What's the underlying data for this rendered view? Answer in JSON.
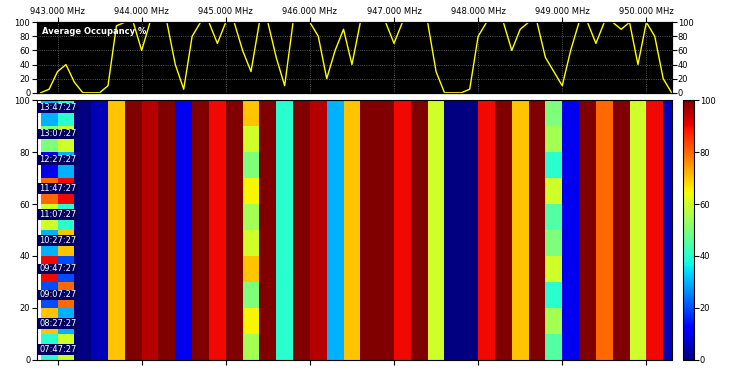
{
  "chart_data": [
    {
      "type": "line",
      "title": "Average Occupancy %",
      "color": "#ffff00",
      "grid": true,
      "x": [
        942.8,
        942.9,
        943.0,
        943.1,
        943.2,
        943.3,
        943.4,
        943.5,
        943.6,
        943.7,
        943.8,
        943.9,
        944.0,
        944.1,
        944.2,
        944.3,
        944.4,
        944.5,
        944.6,
        944.7,
        944.8,
        944.9,
        945.0,
        945.1,
        945.2,
        945.3,
        945.4,
        945.5,
        945.6,
        945.7,
        945.8,
        945.9,
        946.0,
        946.1,
        946.2,
        946.3,
        946.4,
        946.5,
        946.6,
        946.7,
        946.8,
        946.9,
        947.0,
        947.1,
        947.2,
        947.3,
        947.4,
        947.5,
        947.6,
        947.7,
        947.8,
        947.9,
        948.0,
        948.1,
        948.2,
        948.3,
        948.4,
        948.5,
        948.6,
        948.7,
        948.8,
        948.9,
        949.0,
        949.1,
        949.2,
        949.3,
        949.4,
        949.5,
        949.6,
        949.7,
        949.8,
        949.9,
        950.0,
        950.1,
        950.2,
        950.3
      ],
      "values": [
        0,
        5,
        30,
        40,
        15,
        0,
        0,
        0,
        10,
        95,
        100,
        100,
        60,
        100,
        100,
        100,
        40,
        5,
        80,
        100,
        100,
        70,
        100,
        100,
        60,
        30,
        100,
        100,
        50,
        10,
        100,
        100,
        100,
        80,
        20,
        60,
        90,
        40,
        100,
        100,
        100,
        100,
        70,
        100,
        100,
        100,
        100,
        30,
        0,
        0,
        0,
        5,
        80,
        100,
        100,
        100,
        60,
        90,
        100,
        100,
        50,
        30,
        10,
        60,
        100,
        100,
        70,
        100,
        100,
        90,
        100,
        40,
        100,
        80,
        20,
        0
      ],
      "xlim": [
        942.75,
        950.3
      ],
      "xticks": [
        {
          "value": 943,
          "label": "943.000 MHz"
        },
        {
          "value": 944,
          "label": "944.000 MHz"
        },
        {
          "value": 945,
          "label": "945.000 MHz"
        },
        {
          "value": 946,
          "label": "946.000 MHz"
        },
        {
          "value": 947,
          "label": "947.000 MHz"
        },
        {
          "value": 948,
          "label": "948.000 MHz"
        },
        {
          "value": 949,
          "label": "949.000 MHz"
        },
        {
          "value": 950,
          "label": "950.000 MHz"
        }
      ],
      "ylim": [
        0,
        100
      ],
      "yticks": [
        0,
        20,
        40,
        60,
        80,
        100
      ],
      "y2lim": [
        0,
        100
      ],
      "y2ticks": [
        0,
        20,
        40,
        60,
        80,
        100
      ]
    },
    {
      "type": "heatmap",
      "tick_labels": "y",
      "x": [
        942.8,
        943.0,
        943.2,
        943.4,
        943.6,
        943.8,
        944.0,
        944.2,
        944.4,
        944.6,
        944.8,
        945.0,
        945.2,
        945.4,
        945.6,
        945.8,
        946.0,
        946.2,
        946.4,
        946.6,
        946.8,
        947.0,
        947.2,
        947.4,
        947.6,
        947.8,
        948.0,
        948.2,
        948.4,
        948.6,
        948.8,
        949.0,
        949.2,
        949.4,
        949.6,
        949.8,
        950.0,
        950.2,
        950.4
      ],
      "y": [
        0,
        10,
        20,
        30,
        40,
        50,
        60,
        70,
        80,
        90,
        100
      ],
      "cells": [
        [
          40,
          60,
          0,
          5,
          70,
          100,
          95,
          100,
          10,
          100,
          90,
          100,
          55,
          100,
          40,
          100,
          95,
          30,
          70,
          100,
          100,
          90,
          100,
          60,
          0,
          0,
          90,
          100,
          70,
          100,
          45,
          10,
          100,
          80,
          100,
          60,
          90,
          5
        ],
        [
          70,
          30,
          0,
          5,
          70,
          100,
          95,
          100,
          10,
          100,
          90,
          100,
          65,
          100,
          40,
          100,
          95,
          30,
          70,
          100,
          100,
          90,
          100,
          60,
          0,
          0,
          90,
          100,
          70,
          100,
          55,
          10,
          100,
          80,
          100,
          60,
          90,
          5
        ],
        [
          20,
          80,
          0,
          5,
          70,
          100,
          95,
          100,
          10,
          100,
          90,
          100,
          50,
          100,
          40,
          100,
          95,
          30,
          70,
          100,
          100,
          90,
          100,
          60,
          0,
          0,
          90,
          100,
          70,
          100,
          40,
          10,
          100,
          80,
          100,
          60,
          90,
          5
        ],
        [
          90,
          20,
          0,
          5,
          70,
          100,
          95,
          100,
          10,
          100,
          90,
          100,
          70,
          100,
          40,
          100,
          95,
          30,
          70,
          100,
          100,
          90,
          100,
          60,
          0,
          0,
          90,
          100,
          70,
          100,
          60,
          10,
          100,
          80,
          100,
          60,
          90,
          5
        ],
        [
          30,
          70,
          0,
          5,
          70,
          100,
          95,
          100,
          10,
          100,
          90,
          100,
          60,
          100,
          40,
          100,
          95,
          30,
          70,
          100,
          100,
          90,
          100,
          60,
          0,
          0,
          90,
          100,
          70,
          100,
          50,
          10,
          100,
          80,
          100,
          60,
          90,
          5
        ],
        [
          60,
          40,
          0,
          5,
          70,
          100,
          95,
          100,
          10,
          100,
          90,
          100,
          55,
          100,
          40,
          100,
          95,
          30,
          70,
          100,
          100,
          90,
          100,
          60,
          0,
          0,
          90,
          100,
          70,
          100,
          45,
          10,
          100,
          80,
          100,
          60,
          90,
          5
        ],
        [
          80,
          90,
          0,
          5,
          70,
          100,
          95,
          100,
          10,
          100,
          90,
          100,
          65,
          100,
          40,
          100,
          95,
          30,
          70,
          100,
          100,
          90,
          100,
          60,
          0,
          0,
          90,
          100,
          70,
          100,
          60,
          10,
          100,
          80,
          100,
          60,
          90,
          5
        ],
        [
          10,
          30,
          0,
          5,
          70,
          100,
          95,
          100,
          10,
          100,
          90,
          100,
          50,
          100,
          40,
          100,
          95,
          30,
          70,
          100,
          100,
          90,
          100,
          60,
          0,
          0,
          90,
          100,
          70,
          100,
          40,
          10,
          100,
          80,
          100,
          60,
          90,
          5
        ],
        [
          50,
          60,
          0,
          5,
          70,
          100,
          95,
          100,
          10,
          100,
          90,
          100,
          60,
          100,
          40,
          100,
          95,
          30,
          70,
          100,
          100,
          90,
          100,
          60,
          0,
          0,
          90,
          100,
          70,
          100,
          55,
          10,
          100,
          80,
          100,
          60,
          90,
          5
        ],
        [
          30,
          40,
          0,
          5,
          70,
          100,
          95,
          100,
          10,
          100,
          90,
          100,
          70,
          100,
          40,
          100,
          95,
          30,
          70,
          100,
          100,
          90,
          100,
          60,
          0,
          0,
          90,
          100,
          70,
          100,
          50,
          10,
          100,
          80,
          100,
          60,
          90,
          5
        ]
      ],
      "xlim": [
        942.75,
        950.3
      ],
      "xticks": [
        943,
        944,
        945,
        946,
        947,
        948,
        949,
        950
      ],
      "ylim": [
        0,
        100
      ],
      "yticks": [
        0,
        20,
        40,
        60,
        80,
        100
      ],
      "colorbar_range": [
        0,
        100
      ],
      "colorbar_ticks": [
        0,
        20,
        40,
        60,
        80,
        100
      ],
      "annotations": [
        {
          "y": 4,
          "text": "07:47:27"
        },
        {
          "y": 14,
          "text": "08:27:27"
        },
        {
          "y": 25,
          "text": "09:07:27"
        },
        {
          "y": 35,
          "text": "09:47:27"
        },
        {
          "y": 46,
          "text": "10:27:27"
        },
        {
          "y": 56,
          "text": "11:07:27"
        },
        {
          "y": 66,
          "text": "11:47:27"
        },
        {
          "y": 77,
          "text": "12:27:27"
        },
        {
          "y": 87,
          "text": "13:07:27"
        },
        {
          "y": 97,
          "text": "13:47:27"
        }
      ]
    }
  ]
}
